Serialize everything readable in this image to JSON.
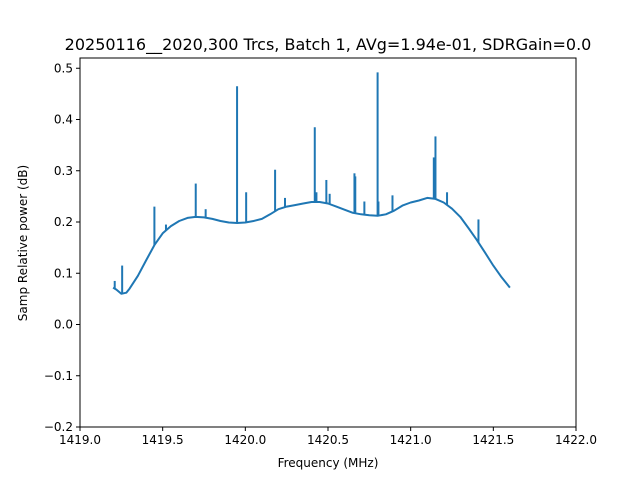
{
  "chart_data": {
    "type": "line",
    "title": "20250116__2020,300 Trcs, Batch 1, AVg=1.94e-01, SDRGain=0.0",
    "xlabel": "Frequency (MHz)",
    "ylabel": "Samp Relative power (dB)",
    "xlim": [
      1419.0,
      1422.0
    ],
    "ylim": [
      -0.2,
      0.52
    ],
    "x_ticks": [
      "1419.0",
      "1419.5",
      "1420.0",
      "1420.5",
      "1421.0",
      "1421.5",
      "1422.0"
    ],
    "y_ticks": [
      "−0.2",
      "−0.1",
      "0.0",
      "0.1",
      "0.2",
      "0.3",
      "0.4",
      "0.5"
    ],
    "x_tick_values": [
      1419.0,
      1419.5,
      1420.0,
      1420.5,
      1421.0,
      1421.5,
      1422.0
    ],
    "y_tick_values": [
      -0.2,
      -0.1,
      0.0,
      0.1,
      0.2,
      0.3,
      0.4,
      0.5
    ],
    "grid": false,
    "line_color": "#1f77b4",
    "series": [
      {
        "x": [
          1419.2,
          1419.22,
          1419.25,
          1419.28,
          1419.3,
          1419.35,
          1419.4,
          1419.45,
          1419.5,
          1419.55,
          1419.6,
          1419.65,
          1419.7,
          1419.75,
          1419.8,
          1419.85,
          1419.9,
          1419.95,
          1420.0,
          1420.05,
          1420.1,
          1420.15,
          1420.2,
          1420.25,
          1420.3,
          1420.35,
          1420.4,
          1420.45,
          1420.5,
          1420.55,
          1420.6,
          1420.65,
          1420.7,
          1420.75,
          1420.8,
          1420.85,
          1420.9,
          1420.95,
          1421.0,
          1421.05,
          1421.1,
          1421.15,
          1421.2,
          1421.25,
          1421.3,
          1421.35,
          1421.4,
          1421.45,
          1421.5,
          1421.55,
          1421.6
        ],
        "y": [
          0.072,
          0.068,
          0.06,
          0.062,
          0.07,
          0.095,
          0.125,
          0.155,
          0.178,
          0.192,
          0.202,
          0.208,
          0.21,
          0.209,
          0.206,
          0.202,
          0.199,
          0.198,
          0.199,
          0.202,
          0.206,
          0.215,
          0.225,
          0.23,
          0.233,
          0.236,
          0.239,
          0.239,
          0.236,
          0.23,
          0.224,
          0.218,
          0.215,
          0.213,
          0.212,
          0.215,
          0.222,
          0.232,
          0.238,
          0.242,
          0.247,
          0.245,
          0.238,
          0.226,
          0.21,
          0.188,
          0.165,
          0.14,
          0.115,
          0.092,
          0.072
        ]
      }
    ],
    "spikes": [
      {
        "x": 1419.21,
        "y": 0.085
      },
      {
        "x": 1419.255,
        "y": 0.115
      },
      {
        "x": 1419.45,
        "y": 0.23
      },
      {
        "x": 1419.52,
        "y": 0.195
      },
      {
        "x": 1419.7,
        "y": 0.275
      },
      {
        "x": 1419.76,
        "y": 0.225
      },
      {
        "x": 1419.95,
        "y": 0.465
      },
      {
        "x": 1420.005,
        "y": 0.258
      },
      {
        "x": 1420.18,
        "y": 0.302
      },
      {
        "x": 1420.24,
        "y": 0.247
      },
      {
        "x": 1420.42,
        "y": 0.385
      },
      {
        "x": 1420.43,
        "y": 0.258
      },
      {
        "x": 1420.49,
        "y": 0.282
      },
      {
        "x": 1420.51,
        "y": 0.255
      },
      {
        "x": 1420.66,
        "y": 0.295
      },
      {
        "x": 1420.665,
        "y": 0.289
      },
      {
        "x": 1420.72,
        "y": 0.24
      },
      {
        "x": 1420.8,
        "y": 0.492
      },
      {
        "x": 1420.805,
        "y": 0.24
      },
      {
        "x": 1420.89,
        "y": 0.252
      },
      {
        "x": 1421.14,
        "y": 0.326
      },
      {
        "x": 1421.15,
        "y": 0.367
      },
      {
        "x": 1421.22,
        "y": 0.258
      },
      {
        "x": 1421.41,
        "y": 0.205
      }
    ]
  }
}
